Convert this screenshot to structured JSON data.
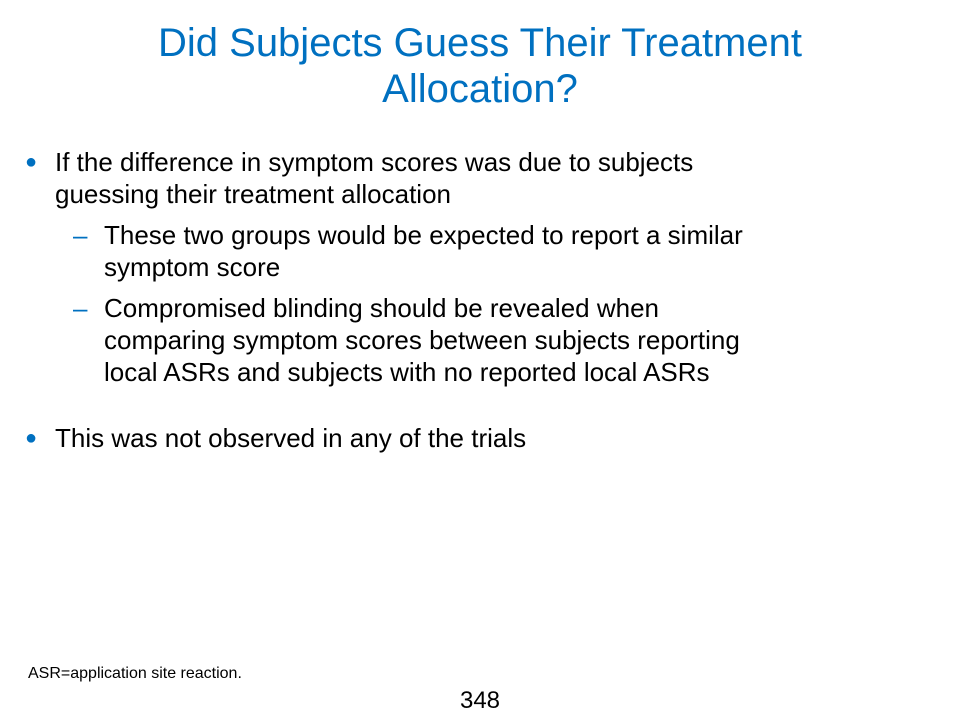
{
  "slide": {
    "title_lines": [
      "Did Subjects Guess Their Treatment",
      "Allocation?"
    ],
    "bullets": [
      {
        "marker": "●",
        "lines": [
          "If the difference in symptom scores was due to subjects",
          "guessing their treatment allocation"
        ],
        "sub_items": [
          {
            "marker": "–",
            "lines": [
              "These two groups would be expected to report a similar",
              "symptom score"
            ]
          },
          {
            "marker": "–",
            "lines": [
              "Compromised blinding should be revealed when",
              "comparing symptom scores between subjects reporting",
              "local ASRs and subjects with no reported local ASRs"
            ]
          }
        ]
      },
      {
        "marker": "●",
        "lines": [
          "This was not observed in any of the trials"
        ]
      }
    ],
    "footnote": "ASR=application site reaction.",
    "page_number": "348"
  },
  "colors": {
    "accent": "#0070c0",
    "text": "#000000",
    "background": "#ffffff"
  }
}
